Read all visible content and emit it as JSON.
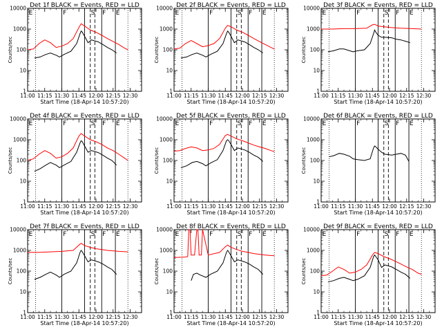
{
  "figure": {
    "common_xlabel": "Start Time (18-Apr-14 10:57:20)",
    "ylabel": "Counts/sec",
    "x_ticks": [
      "11:00",
      "11:15",
      "11:30",
      "11:45",
      "12:00",
      "12:15",
      "12:30"
    ],
    "x_tick_minutes": [
      0,
      15,
      30,
      45,
      60,
      75,
      90
    ],
    "x_range_minutes": [
      0,
      100
    ],
    "y_ticks": [
      "1",
      "10",
      "100",
      "1000",
      "10000"
    ],
    "y_tick_values": [
      1,
      10,
      100,
      1000,
      10000
    ],
    "y_scale": "log",
    "colors": {
      "events": "#000000",
      "lld": "#ff0000"
    },
    "markers": {
      "dotted": [
        7,
        88
      ],
      "solid": [
        30,
        50,
        65,
        77
      ],
      "dashed": [
        55,
        59
      ]
    },
    "marker_labels": [
      {
        "text": "E",
        "x": 1
      },
      {
        "text": "F",
        "x": 31
      },
      {
        "text": "S",
        "x": 55.5
      },
      {
        "text": "F",
        "x": 65.5
      },
      {
        "text": "E",
        "x": 77.5
      }
    ]
  },
  "chart_data": [
    {
      "type": "line",
      "title": "Det 1f BLACK = Events, RED = LLD",
      "series": [
        {
          "name": "Events",
          "x": [
            6,
            11,
            16,
            20,
            25,
            28,
            32,
            38,
            43,
            46,
            47,
            48,
            50,
            53,
            56,
            62,
            66,
            70,
            74,
            78
          ],
          "y": [
            40,
            45,
            60,
            70,
            55,
            45,
            60,
            85,
            200,
            600,
            800,
            700,
            450,
            220,
            300,
            240,
            180,
            130,
            100,
            70
          ]
        },
        {
          "name": "LLD",
          "x": [
            0,
            5,
            10,
            15,
            20,
            25,
            30,
            35,
            40,
            45,
            47,
            50,
            55,
            60,
            65,
            70,
            75,
            80,
            85,
            88
          ],
          "y": [
            100,
            110,
            200,
            300,
            220,
            130,
            150,
            200,
            350,
            1200,
            1800,
            1400,
            900,
            700,
            500,
            350,
            250,
            180,
            120,
            100
          ]
        }
      ]
    },
    {
      "type": "line",
      "title": "Det 2f BLACK = Events, RED = LLD",
      "series": [
        {
          "name": "Events",
          "x": [
            6,
            11,
            16,
            20,
            25,
            28,
            32,
            38,
            43,
            46,
            47,
            48,
            50,
            53,
            56,
            62,
            66,
            70,
            74,
            78
          ],
          "y": [
            40,
            45,
            60,
            70,
            55,
            45,
            60,
            85,
            200,
            600,
            800,
            700,
            450,
            220,
            300,
            240,
            180,
            130,
            100,
            70
          ]
        },
        {
          "name": "LLD",
          "x": [
            0,
            5,
            10,
            15,
            20,
            25,
            30,
            35,
            40,
            45,
            47,
            50,
            55,
            60,
            65,
            70,
            75,
            80,
            85,
            88
          ],
          "y": [
            110,
            120,
            200,
            280,
            200,
            140,
            160,
            200,
            350,
            1100,
            1500,
            1300,
            900,
            700,
            500,
            350,
            250,
            180,
            130,
            110
          ]
        }
      ]
    },
    {
      "type": "line",
      "title": "Det 3f BLACK = Events, RED = LLD",
      "series": [
        {
          "name": "Events",
          "x": [
            6,
            11,
            16,
            20,
            25,
            28,
            32,
            38,
            43,
            46,
            47,
            48,
            50,
            53,
            56,
            62,
            66,
            70,
            74,
            78
          ],
          "y": [
            80,
            90,
            110,
            110,
            90,
            80,
            90,
            100,
            200,
            600,
            900,
            700,
            500,
            400,
            400,
            380,
            320,
            300,
            260,
            220
          ]
        },
        {
          "name": "LLD",
          "x": [
            0,
            10,
            20,
            30,
            40,
            45,
            47,
            50,
            55,
            60,
            65,
            70,
            80,
            88
          ],
          "y": [
            1000,
            1000,
            1050,
            1050,
            1100,
            1600,
            1700,
            1400,
            1300,
            1200,
            1150,
            1100,
            1050,
            1000
          ]
        }
      ]
    },
    {
      "type": "line",
      "title": "Det 4f BLACK = Events, RED = LLD",
      "series": [
        {
          "name": "Events",
          "x": [
            6,
            11,
            16,
            20,
            25,
            28,
            32,
            38,
            43,
            46,
            47,
            48,
            50,
            53,
            56,
            62,
            66,
            70,
            74,
            78
          ],
          "y": [
            30,
            40,
            60,
            80,
            60,
            45,
            60,
            90,
            250,
            700,
            900,
            800,
            500,
            250,
            300,
            240,
            180,
            130,
            100,
            60
          ]
        },
        {
          "name": "LLD",
          "x": [
            0,
            5,
            10,
            15,
            20,
            25,
            30,
            35,
            40,
            45,
            47,
            50,
            55,
            60,
            65,
            70,
            75,
            80,
            85,
            88
          ],
          "y": [
            100,
            120,
            200,
            300,
            220,
            130,
            150,
            220,
            400,
            1500,
            2000,
            1500,
            1000,
            800,
            600,
            400,
            300,
            200,
            130,
            100
          ]
        }
      ]
    },
    {
      "type": "line",
      "title": "Det 5f BLACK = Events, RED = LLD",
      "series": [
        {
          "name": "Events",
          "x": [
            6,
            11,
            16,
            20,
            25,
            28,
            32,
            38,
            43,
            46,
            47,
            48,
            50,
            53,
            56,
            62,
            66,
            70,
            74,
            78
          ],
          "y": [
            45,
            55,
            80,
            90,
            70,
            55,
            75,
            110,
            300,
            900,
            1000,
            900,
            600,
            300,
            400,
            320,
            250,
            180,
            140,
            90
          ]
        },
        {
          "name": "LLD",
          "x": [
            0,
            5,
            10,
            15,
            20,
            25,
            30,
            35,
            40,
            45,
            47,
            50,
            55,
            60,
            65,
            70,
            75,
            80,
            85,
            88
          ],
          "y": [
            280,
            300,
            380,
            450,
            400,
            300,
            320,
            380,
            600,
            1600,
            1800,
            1500,
            1100,
            900,
            700,
            550,
            450,
            380,
            300,
            270
          ]
        }
      ]
    },
    {
      "type": "line",
      "title": "Det 6f BLACK = Events, RED = LLD",
      "series": [
        {
          "name": "Events",
          "x": [
            7,
            11,
            16,
            20,
            25,
            28,
            32,
            38,
            43,
            46,
            47,
            48,
            50,
            53,
            56,
            62,
            66,
            70,
            74,
            77
          ],
          "y": [
            150,
            170,
            220,
            200,
            160,
            120,
            110,
            100,
            120,
            400,
            500,
            450,
            350,
            250,
            200,
            180,
            200,
            220,
            180,
            90
          ]
        }
      ]
    },
    {
      "type": "line",
      "title": "Det 7f BLACK = Events, RED = LLD",
      "series": [
        {
          "name": "Events",
          "x": [
            6,
            11,
            16,
            20,
            25,
            28,
            32,
            38,
            43,
            46,
            47,
            48,
            50,
            53,
            56,
            62,
            66,
            70,
            74,
            78
          ],
          "y": [
            40,
            50,
            70,
            90,
            65,
            50,
            70,
            100,
            250,
            800,
            1000,
            850,
            550,
            280,
            350,
            280,
            220,
            160,
            120,
            70
          ]
        },
        {
          "name": "LLD",
          "x": [
            0,
            10,
            20,
            30,
            40,
            45,
            47,
            50,
            55,
            60,
            65,
            70,
            80,
            88
          ],
          "y": [
            800,
            800,
            850,
            900,
            1000,
            1800,
            2200,
            1700,
            1400,
            1200,
            1100,
            1000,
            900,
            850
          ]
        }
      ]
    },
    {
      "type": "line",
      "title": "Det 8f BLACK = Events, RED = LLD",
      "series": [
        {
          "name": "Events",
          "x": [
            15,
            17,
            20,
            23,
            28,
            32,
            38,
            43,
            46,
            47,
            48,
            50,
            53,
            56,
            62,
            66,
            70,
            74,
            78
          ],
          "y": [
            35,
            70,
            80,
            65,
            50,
            70,
            100,
            250,
            800,
            1000,
            850,
            550,
            280,
            350,
            280,
            220,
            160,
            120,
            70
          ]
        },
        {
          "name": "LLD",
          "x": [
            0,
            10,
            12,
            13,
            14,
            15,
            16,
            18,
            20,
            21,
            22,
            24,
            25,
            30,
            40,
            45,
            47,
            50,
            55,
            60,
            65,
            70,
            80,
            88
          ],
          "y": [
            450,
            480,
            500,
            10000,
            10000,
            600,
            600,
            600,
            10000,
            10000,
            600,
            600,
            10000,
            600,
            800,
            1500,
            1800,
            1400,
            1100,
            900,
            800,
            700,
            600,
            550
          ]
        }
      ]
    },
    {
      "type": "line",
      "title": "Det 9f BLACK = Events, RED = LLD",
      "series": [
        {
          "name": "Events",
          "x": [
            6,
            11,
            16,
            20,
            25,
            28,
            32,
            38,
            43,
            46,
            47,
            48,
            50,
            53,
            56,
            62,
            66,
            70,
            74,
            78
          ],
          "y": [
            30,
            35,
            45,
            50,
            40,
            35,
            40,
            60,
            150,
            500,
            600,
            500,
            350,
            150,
            200,
            160,
            120,
            90,
            70,
            45
          ]
        },
        {
          "name": "LLD",
          "x": [
            0,
            5,
            10,
            15,
            20,
            25,
            30,
            35,
            40,
            45,
            47,
            50,
            55,
            60,
            65,
            70,
            75,
            80,
            85,
            88
          ],
          "y": [
            60,
            65,
            100,
            160,
            120,
            80,
            90,
            120,
            200,
            600,
            800,
            700,
            500,
            400,
            300,
            220,
            160,
            120,
            80,
            70
          ]
        }
      ]
    }
  ]
}
